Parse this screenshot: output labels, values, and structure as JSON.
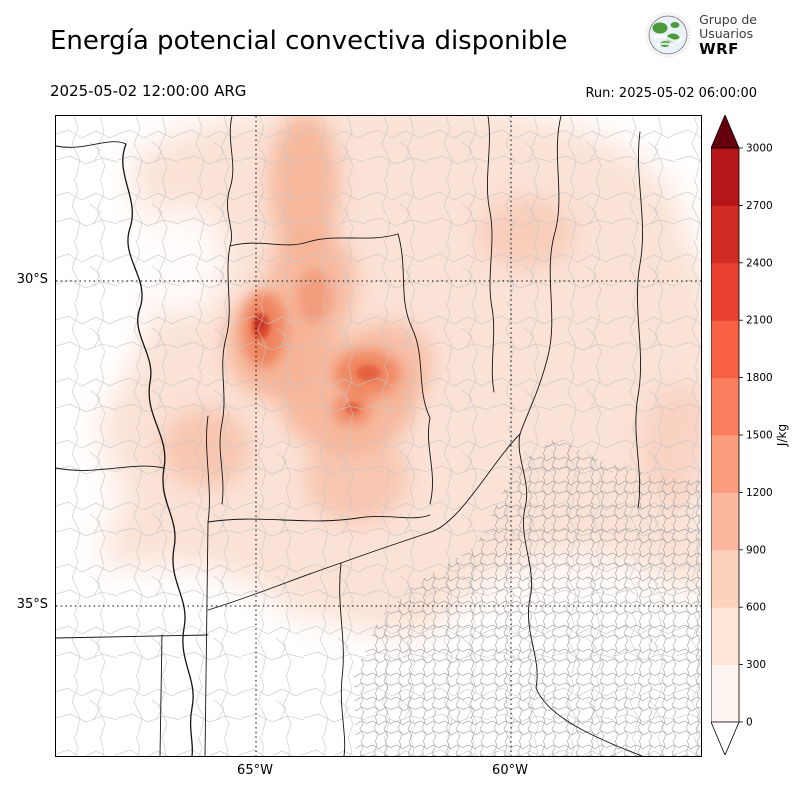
{
  "header": {
    "title": "Energía potencial convectiva disponible",
    "valid_time": "2025-05-02 12:00:00 ARG",
    "run_label": "Run: 2025-05-02 06:00:00",
    "logo": {
      "line1": "Grupo de",
      "line2": "Usuarios",
      "line3": "WRF"
    }
  },
  "map": {
    "lat_labels": [
      "30°S",
      "35°S"
    ],
    "lon_labels": [
      "65°W",
      "60°W"
    ]
  },
  "colorbar": {
    "unit": "J/kg",
    "ticks": [
      "0",
      "300",
      "600",
      "900",
      "1200",
      "1500",
      "1800",
      "2100",
      "2400",
      "2700",
      "3000"
    ],
    "cell_colors": [
      "#fff5f0",
      "#fee6d8",
      "#fdd2bd",
      "#fcb79e",
      "#fc9c7e",
      "#fb7f5f",
      "#f86044",
      "#ea4030",
      "#d22b26",
      "#b4161b"
    ],
    "over_color": "#67000d",
    "under_color": "#ffffff"
  },
  "chart_data": {
    "type": "heatmap",
    "title": "Energía potencial convectiva disponible",
    "unit": "J/kg",
    "scale_ticks": [
      0,
      300,
      600,
      900,
      1200,
      1500,
      1800,
      2100,
      2400,
      2700,
      3000
    ],
    "scale_min": 0,
    "scale_max": 3000,
    "lat_ticks": [
      "30°S",
      "35°S"
    ],
    "lon_ticks": [
      "65°W",
      "60°W"
    ],
    "legend_position": "right"
  }
}
